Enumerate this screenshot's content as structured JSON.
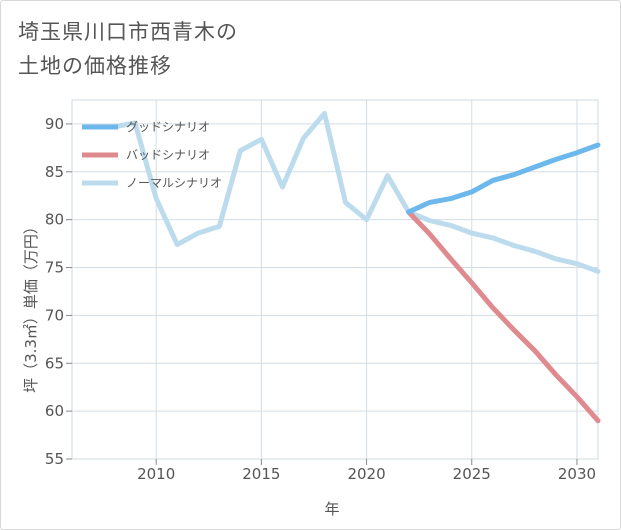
{
  "chart_data": {
    "type": "line",
    "title_line1": "埼玉県川口市西青木の",
    "title_line2": "土地の価格推移",
    "xlabel": "年",
    "ylabel": "坪（3.3㎡）単価（万円）",
    "xlim": [
      2006,
      2031
    ],
    "ylim": [
      55,
      92.5
    ],
    "xticks": [
      2010,
      2015,
      2020,
      2025,
      2030
    ],
    "yticks": [
      55,
      60,
      65,
      70,
      75,
      80,
      85,
      90
    ],
    "grid": true,
    "legend_position": "top-left",
    "series": [
      {
        "name": "グッドシナリオ",
        "color": "#6cb8ec",
        "x": [
          2022,
          2023,
          2024,
          2025,
          2026,
          2027,
          2028,
          2029,
          2030,
          2031
        ],
        "y": [
          80.8,
          81.8,
          82.2,
          82.9,
          84.1,
          84.7,
          85.5,
          86.3,
          87.0,
          87.8
        ]
      },
      {
        "name": "バッドシナリオ",
        "color": "#df8a8f",
        "x": [
          2022,
          2023,
          2024,
          2025,
          2026,
          2027,
          2028,
          2029,
          2030,
          2031
        ],
        "y": [
          80.8,
          78.5,
          75.9,
          73.4,
          70.8,
          68.5,
          66.3,
          63.8,
          61.5,
          59.0
        ]
      },
      {
        "name": "ノーマルシナリオ",
        "color": "#bcdcee",
        "x": [
          2008,
          2009,
          2010,
          2011,
          2012,
          2013,
          2014,
          2015,
          2016,
          2017,
          2018,
          2019,
          2020,
          2021,
          2022,
          2023,
          2024,
          2025,
          2026,
          2027,
          2028,
          2029,
          2030,
          2031
        ],
        "y": [
          89.7,
          90.1,
          82.2,
          77.4,
          78.6,
          79.3,
          87.2,
          88.4,
          83.4,
          88.5,
          91.1,
          81.8,
          80.0,
          84.6,
          80.8,
          79.9,
          79.4,
          78.6,
          78.1,
          77.3,
          76.7,
          75.9,
          75.4,
          74.6
        ]
      }
    ]
  }
}
